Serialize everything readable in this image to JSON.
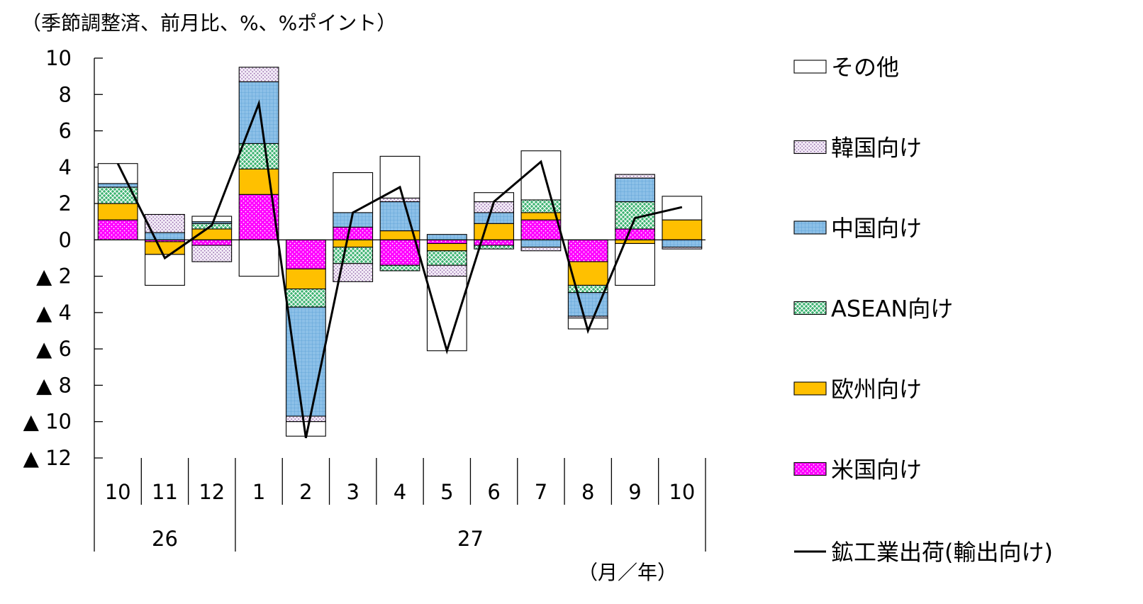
{
  "chart_data": {
    "type": "bar",
    "stacked": true,
    "unit_note": "（季節調整済、前月比、%、%ポイント）",
    "period_label": "（月／年）",
    "ylim": [
      -12,
      10
    ],
    "y_ticks": [
      {
        "value": 10,
        "label": "10"
      },
      {
        "value": 8,
        "label": "8"
      },
      {
        "value": 6,
        "label": "6"
      },
      {
        "value": 4,
        "label": "4"
      },
      {
        "value": 2,
        "label": "2"
      },
      {
        "value": 0,
        "label": "0"
      },
      {
        "value": -2,
        "label": "▲ 2"
      },
      {
        "value": -4,
        "label": "▲ 4"
      },
      {
        "value": -6,
        "label": "▲ 6"
      },
      {
        "value": -8,
        "label": "▲ 8"
      },
      {
        "value": -10,
        "label": "▲ 10"
      },
      {
        "value": -12,
        "label": "▲ 12"
      }
    ],
    "categories": [
      "10",
      "11",
      "12",
      "1",
      "2",
      "3",
      "4",
      "5",
      "6",
      "7",
      "8",
      "9",
      "10"
    ],
    "year_groups": [
      {
        "label": "26",
        "count": 3
      },
      {
        "label": "27",
        "count": 10
      }
    ],
    "series": [
      {
        "name": "米国向け",
        "color": "#ff00ff",
        "pattern": "dots-white",
        "values": [
          1.1,
          -0.1,
          -0.3,
          2.5,
          -1.6,
          0.7,
          -1.4,
          -0.2,
          -0.3,
          1.1,
          -1.2,
          0.6,
          0.0
        ]
      },
      {
        "name": "欧州向け",
        "color": "#ffc000",
        "pattern": "solid",
        "values": [
          0.9,
          -0.7,
          0.6,
          1.4,
          -1.1,
          -0.4,
          0.5,
          -0.4,
          0.9,
          0.4,
          -1.3,
          -0.2,
          1.1
        ]
      },
      {
        "name": "ASEAN向け",
        "color": "#3cb371",
        "pattern": "lattice-white",
        "values": [
          0.9,
          0.0,
          0.3,
          1.4,
          -1.0,
          -0.9,
          -0.3,
          -0.8,
          -0.2,
          0.7,
          -0.4,
          1.5,
          0.0
        ]
      },
      {
        "name": "中国向け",
        "color": "#8cc0e8",
        "pattern": "grid-blue",
        "values": [
          0.2,
          0.4,
          0.1,
          3.4,
          -6.0,
          0.8,
          1.6,
          0.3,
          0.6,
          -0.4,
          -1.3,
          1.3,
          -0.4
        ]
      },
      {
        "name": "韓国向け",
        "color": "#e8d8f0",
        "pattern": "dots-purple",
        "values": [
          0.0,
          1.0,
          -0.9,
          0.8,
          -0.3,
          -1.0,
          0.2,
          -0.6,
          0.6,
          -0.2,
          -0.1,
          0.2,
          -0.1
        ]
      },
      {
        "name": "その他",
        "color": "#ffffff",
        "pattern": "solid",
        "values": [
          1.1,
          -1.7,
          0.3,
          -2.0,
          -0.8,
          2.2,
          2.3,
          -4.1,
          0.5,
          2.7,
          -0.6,
          -2.3,
          1.3
        ]
      }
    ],
    "line": {
      "name": "鉱工業出荷(輸出向け)",
      "color": "#000000",
      "values": [
        4.2,
        -1.0,
        0.8,
        7.5,
        -10.9,
        1.5,
        2.9,
        -6.1,
        2.1,
        4.3,
        -5.0,
        1.2,
        1.8
      ]
    },
    "legend_position": "right",
    "grid": false
  }
}
